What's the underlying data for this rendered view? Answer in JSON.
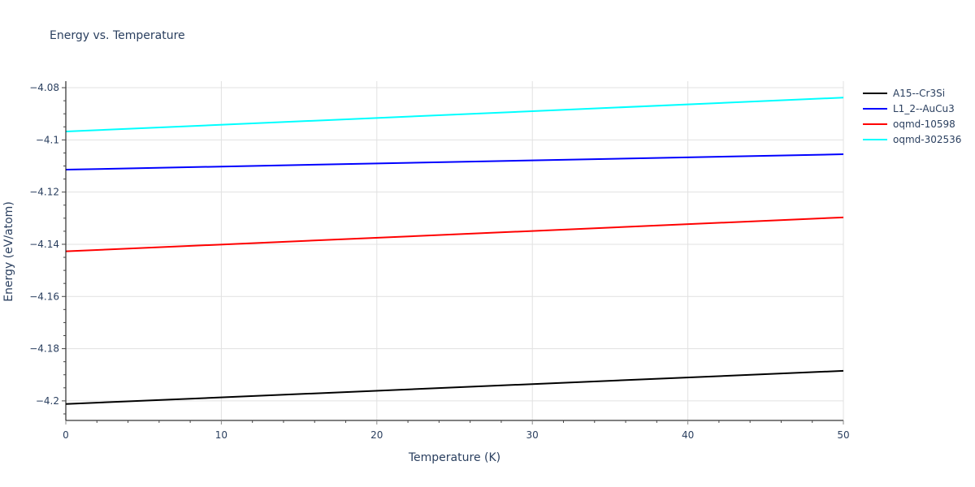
{
  "chart_data": {
    "type": "line",
    "title": "Energy vs. Temperature",
    "xlabel": "Temperature (K)",
    "ylabel": "Energy (eV/atom)",
    "xlim": [
      0,
      50
    ],
    "ylim": [
      -4.2075,
      -4.0775
    ],
    "x_ticks": [
      0,
      10,
      20,
      30,
      40,
      50
    ],
    "x_tick_labels": [
      "0",
      "10",
      "20",
      "30",
      "40",
      "50"
    ],
    "y_ticks": [
      -4.08,
      -4.1,
      -4.12,
      -4.14,
      -4.16,
      -4.18,
      -4.2
    ],
    "y_tick_labels": [
      "−4.08",
      "−4.1",
      "−4.12",
      "−4.14",
      "−4.16",
      "−4.18",
      "−4.2"
    ],
    "grid": true,
    "legend_position": "right",
    "x": [
      0,
      50
    ],
    "series": [
      {
        "name": "A15--Cr3Si",
        "color": "#000000",
        "x": [
          0,
          50
        ],
        "values": [
          -4.2012,
          -4.1885
        ]
      },
      {
        "name": "L1_2--AuCu3",
        "color": "#0000ff",
        "x": [
          0,
          50
        ],
        "values": [
          -4.1114,
          -4.1055
        ]
      },
      {
        "name": "oqmd-10598",
        "color": "#ff0000",
        "x": [
          0,
          50
        ],
        "values": [
          -4.1427,
          -4.1297
        ]
      },
      {
        "name": "oqmd-302536",
        "color": "#00ffff",
        "x": [
          0,
          50
        ],
        "values": [
          -4.0968,
          -4.0838
        ]
      }
    ]
  },
  "legend": {
    "items": [
      {
        "label": "A15--Cr3Si",
        "color": "#000000"
      },
      {
        "label": "L1_2--AuCu3",
        "color": "#0000ff"
      },
      {
        "label": "oqmd-10598",
        "color": "#ff0000"
      },
      {
        "label": "oqmd-302536",
        "color": "#00ffff"
      }
    ]
  }
}
